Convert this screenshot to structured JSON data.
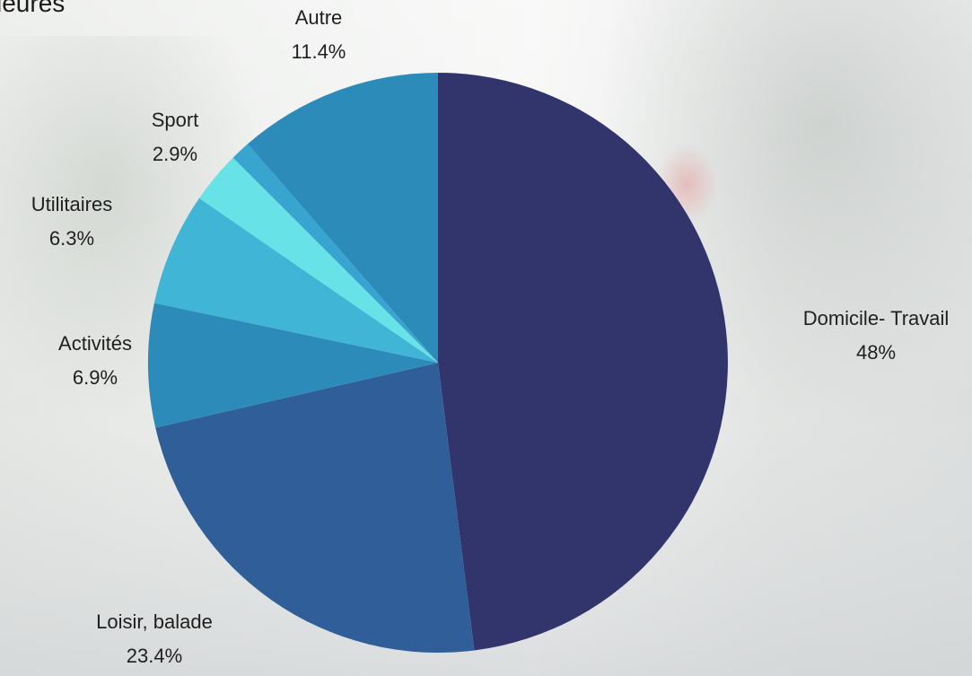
{
  "page": {
    "title": "ieures"
  },
  "chart_data": {
    "type": "pie",
    "title": "",
    "legend": "none",
    "start_angle_deg": 90,
    "direction": "clockwise",
    "slices": [
      {
        "label": "Domicile- Travail",
        "value": 48.0,
        "value_label": "48%",
        "color": "#31356c"
      },
      {
        "label": "Loisir, balade",
        "value": 23.4,
        "value_label": "23.4%",
        "color": "#2f5e98"
      },
      {
        "label": "Activités",
        "value": 6.9,
        "value_label": "6.9%",
        "color": "#2d8bba"
      },
      {
        "label": "Utilitaires",
        "value": 6.3,
        "value_label": "6.3%",
        "color": "#41b5d6"
      },
      {
        "label": "Sport",
        "value": 2.9,
        "value_label": "2.9%",
        "color": "#67e3e8"
      },
      {
        "label": "",
        "value": 1.1,
        "value_label": "",
        "color": "#38a5d1"
      },
      {
        "label": "Autre",
        "value": 11.4,
        "value_label": "11.4%",
        "color": "#2d8bba"
      }
    ]
  }
}
